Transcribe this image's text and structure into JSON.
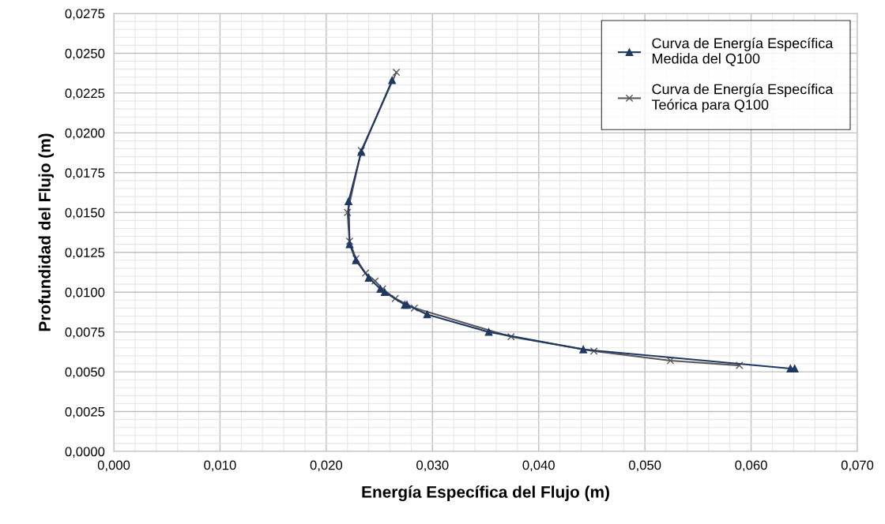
{
  "chart_data": {
    "type": "line",
    "xlabel": "Energía Específica del Flujo (m)",
    "ylabel": "Profundidad del Flujo (m)",
    "series": [
      {
        "name": "Curva de Energía Específica\nMedida del Q100",
        "color": "#1f3864",
        "marker": "triangle",
        "x": [
          0.0262,
          0.0233,
          0.0221,
          0.0222,
          0.0228,
          0.024,
          0.0251,
          0.0255,
          0.0274,
          0.0276,
          0.0295,
          0.0353,
          0.0442,
          0.0637,
          0.0641
        ],
        "values": [
          0.0233,
          0.0188,
          0.0157,
          0.013,
          0.012,
          0.0109,
          0.0102,
          0.01,
          0.0092,
          0.0092,
          0.0086,
          0.0075,
          0.0064,
          0.0052,
          0.0052
        ]
      },
      {
        "name": "Curva de Energía Específica\nTeórica para Q100",
        "color": "#595959",
        "marker": "cross",
        "x": [
          0.0266,
          0.0233,
          0.022,
          0.0222,
          0.0228,
          0.0237,
          0.0246,
          0.0253,
          0.0265,
          0.0283,
          0.0374,
          0.0452,
          0.0524,
          0.0589
        ],
        "values": [
          0.0238,
          0.0189,
          0.015,
          0.0132,
          0.0121,
          0.0112,
          0.0107,
          0.0102,
          0.0096,
          0.009,
          0.0072,
          0.0063,
          0.0057,
          0.0054
        ]
      }
    ],
    "xlim": [
      0.0,
      0.07
    ],
    "ylim": [
      0.0,
      0.0275
    ],
    "xticks": [
      {
        "value": 0.0,
        "label": "0,000"
      },
      {
        "value": 0.01,
        "label": "0,010"
      },
      {
        "value": 0.02,
        "label": "0,020"
      },
      {
        "value": 0.03,
        "label": "0,030"
      },
      {
        "value": 0.04,
        "label": "0,040"
      },
      {
        "value": 0.05,
        "label": "0,050"
      },
      {
        "value": 0.06,
        "label": "0,060"
      },
      {
        "value": 0.07,
        "label": "0,070"
      }
    ],
    "yticks": [
      {
        "value": 0.0,
        "label": "0,0000"
      },
      {
        "value": 0.0025,
        "label": "0,0025"
      },
      {
        "value": 0.005,
        "label": "0,0050"
      },
      {
        "value": 0.0075,
        "label": "0,0075"
      },
      {
        "value": 0.01,
        "label": "0,0100"
      },
      {
        "value": 0.0125,
        "label": "0,0125"
      },
      {
        "value": 0.015,
        "label": "0,0150"
      },
      {
        "value": 0.0175,
        "label": "0,0175"
      },
      {
        "value": 0.02,
        "label": "0,0200"
      },
      {
        "value": 0.0225,
        "label": "0,0225"
      },
      {
        "value": 0.025,
        "label": "0,0250"
      },
      {
        "value": 0.0275,
        "label": "0,0275"
      }
    ],
    "grid": true,
    "legend": "top right",
    "line_style": "solid"
  }
}
